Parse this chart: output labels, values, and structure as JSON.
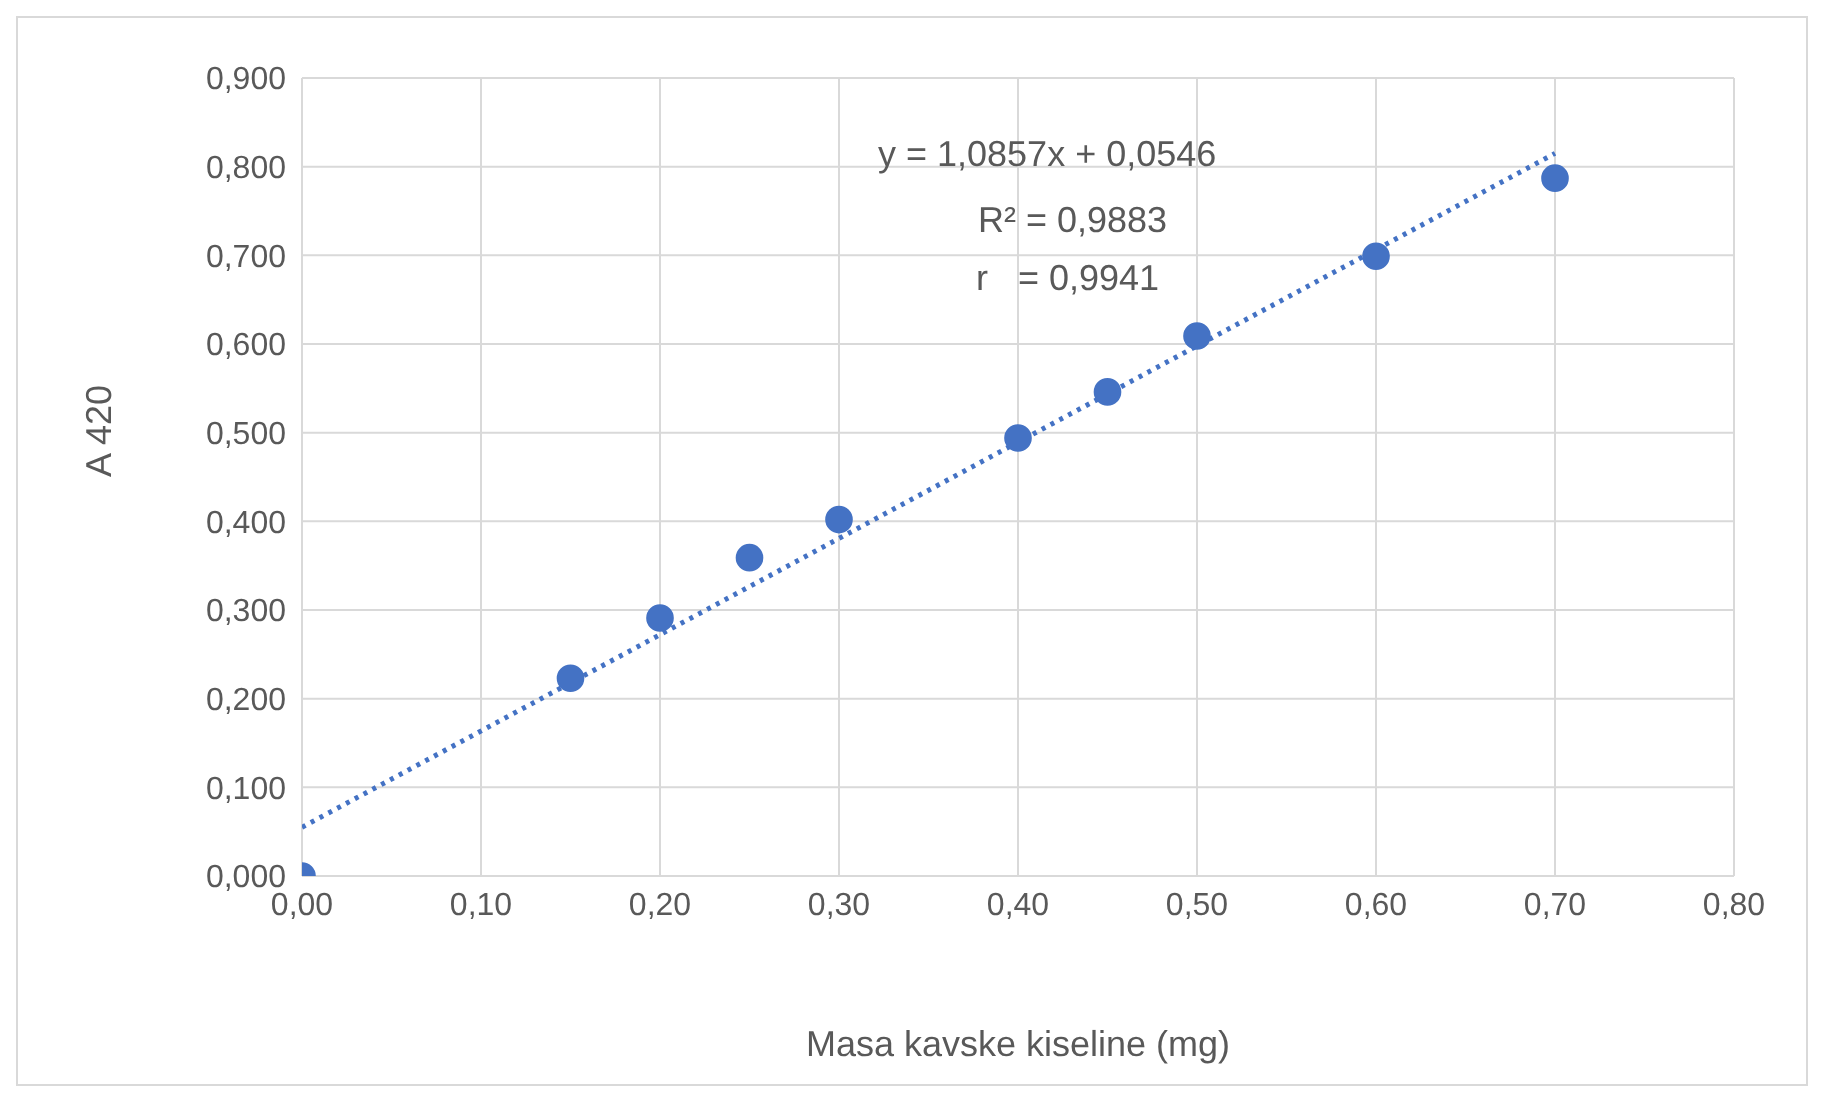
{
  "chart_data": {
    "type": "scatter",
    "xlabel": "Masa kavske kiseline (mg)",
    "ylabel": "A 420",
    "x": [
      0,
      0.15,
      0.2,
      0.25,
      0.3,
      0.4,
      0.45,
      0.5,
      0.6,
      0.7
    ],
    "series": [
      {
        "color": "#4472c4",
        "values": [
          0,
          0.223,
          0.291,
          0.359,
          0.402,
          0.494,
          0.546,
          0.609,
          0.699,
          0.787
        ]
      },
      {
        "type": "line",
        "color": "#4472c4",
        "line_style": "dotted",
        "marker": "none",
        "x": [
          0,
          0.7
        ],
        "values": [
          0.055,
          0.815
        ]
      }
    ],
    "marker": "circle",
    "xlim": [
      0,
      0.8
    ],
    "xticks": [
      {
        "value": 0,
        "label": "0,00"
      },
      {
        "value": 0.1,
        "label": "0,10"
      },
      {
        "value": 0.2,
        "label": "0,20"
      },
      {
        "value": 0.3,
        "label": "0,30"
      },
      {
        "value": 0.4,
        "label": "0,40"
      },
      {
        "value": 0.5,
        "label": "0,50"
      },
      {
        "value": 0.6,
        "label": "0,60"
      },
      {
        "value": 0.7,
        "label": "0,70"
      },
      {
        "value": 0.8,
        "label": "0,80"
      }
    ],
    "ylim": [
      0,
      0.9
    ],
    "yticks": [
      {
        "value": 0,
        "label": "0,000"
      },
      {
        "value": 0.1,
        "label": "0,100"
      },
      {
        "value": 0.2,
        "label": "0,200"
      },
      {
        "value": 0.3,
        "label": "0,300"
      },
      {
        "value": 0.4,
        "label": "0,400"
      },
      {
        "value": 0.5,
        "label": "0,500"
      },
      {
        "value": 0.6,
        "label": "0,600"
      },
      {
        "value": 0.7,
        "label": "0,700"
      },
      {
        "value": 0.8,
        "label": "0,800"
      },
      {
        "value": 0.9,
        "label": "0,900"
      }
    ],
    "grid": true,
    "annotations": [
      "y = 1,0857x + 0,0546",
      "R² = 0,9883",
      "r   = 0,9941"
    ]
  }
}
